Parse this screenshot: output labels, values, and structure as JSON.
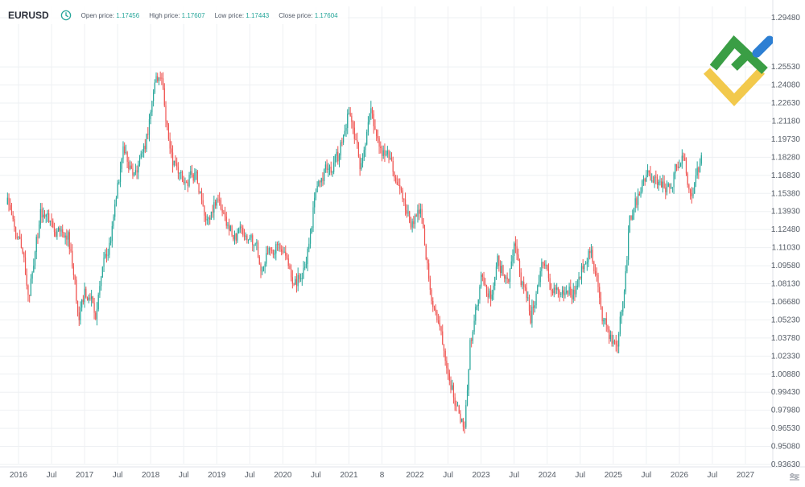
{
  "header": {
    "symbol": "EURUSD",
    "clock_icon": "clock-icon",
    "open_label": "Open price:",
    "open_value": "1.17456",
    "high_label": "High price:",
    "high_value": "1.17607",
    "low_label": "Low price:",
    "low_value": "1.17443",
    "close_label": "Close price:",
    "close_value": "1.17604"
  },
  "colors": {
    "up": "#26a69a",
    "down": "#ef5350",
    "grid": "#eef0f3",
    "axis_text": "#555c66",
    "logo_green": "#3a9e45",
    "logo_yellow": "#f2c94c",
    "logo_blue": "#2d7fd3"
  },
  "icons": {
    "logo": "logo-icon",
    "settings": "settings-icon"
  },
  "chart_data": {
    "type": "candlestick",
    "title": "",
    "xlabel": "",
    "ylabel": "",
    "ylim": [
      0.9363,
      1.2948
    ],
    "y_ticks": [
      "1.29480",
      "1.25530",
      "1.24080",
      "1.22630",
      "1.21180",
      "1.19730",
      "1.18280",
      "1.16830",
      "1.15380",
      "1.13930",
      "1.12480",
      "1.11030",
      "1.09580",
      "1.08130",
      "1.06680",
      "1.05230",
      "1.03780",
      "1.02330",
      "1.00880",
      "0.99430",
      "0.97980",
      "0.96530",
      "0.95080",
      "0.93630"
    ],
    "x_range": [
      "2015-11",
      "2027-06"
    ],
    "x_ticks": [
      {
        "label": "2016",
        "date": "2016-01"
      },
      {
        "label": "Jul",
        "date": "2016-07"
      },
      {
        "label": "2017",
        "date": "2017-01"
      },
      {
        "label": "Jul",
        "date": "2017-07"
      },
      {
        "label": "2018",
        "date": "2018-01"
      },
      {
        "label": "Jul",
        "date": "2018-07"
      },
      {
        "label": "2019",
        "date": "2019-01"
      },
      {
        "label": "Jul",
        "date": "2019-07"
      },
      {
        "label": "2020",
        "date": "2020-01"
      },
      {
        "label": "Jul",
        "date": "2020-07"
      },
      {
        "label": "2021",
        "date": "2021-01"
      },
      {
        "label": "8",
        "date": "2021-07"
      },
      {
        "label": "2022",
        "date": "2022-01"
      },
      {
        "label": "Jul",
        "date": "2022-07"
      },
      {
        "label": "2023",
        "date": "2023-01"
      },
      {
        "label": "Jul",
        "date": "2023-07"
      },
      {
        "label": "2024",
        "date": "2024-01"
      },
      {
        "label": "Jul",
        "date": "2024-07"
      },
      {
        "label": "2025",
        "date": "2025-01"
      },
      {
        "label": "Jul",
        "date": "2025-07"
      },
      {
        "label": "2026",
        "date": "2026-01"
      },
      {
        "label": "Jul",
        "date": "2026-07"
      },
      {
        "label": "2027",
        "date": "2027-01"
      }
    ],
    "grid": true,
    "series": [
      {
        "close_path": [
          {
            "date": "2015-11",
            "close": 1.145
          },
          {
            "date": "2016-02",
            "close": 1.097
          },
          {
            "date": "2016-03",
            "close": 1.075
          },
          {
            "date": "2016-05",
            "close": 1.135
          },
          {
            "date": "2016-06",
            "close": 1.142
          },
          {
            "date": "2016-08",
            "close": 1.125
          },
          {
            "date": "2016-10",
            "close": 1.12
          },
          {
            "date": "2016-11",
            "close": 1.088
          },
          {
            "date": "2016-12",
            "close": 1.05
          },
          {
            "date": "2017-01",
            "close": 1.075
          },
          {
            "date": "2017-03",
            "close": 1.06
          },
          {
            "date": "2017-04",
            "close": 1.09
          },
          {
            "date": "2017-06",
            "close": 1.125
          },
          {
            "date": "2017-08",
            "close": 1.185
          },
          {
            "date": "2017-10",
            "close": 1.165
          },
          {
            "date": "2017-12",
            "close": 1.19
          },
          {
            "date": "2018-02",
            "close": 1.245
          },
          {
            "date": "2018-03",
            "close": 1.235
          },
          {
            "date": "2018-05",
            "close": 1.175
          },
          {
            "date": "2018-07",
            "close": 1.165
          },
          {
            "date": "2018-09",
            "close": 1.17
          },
          {
            "date": "2018-11",
            "close": 1.135
          },
          {
            "date": "2019-01",
            "close": 1.145
          },
          {
            "date": "2019-03",
            "close": 1.125
          },
          {
            "date": "2019-05",
            "close": 1.118
          },
          {
            "date": "2019-07",
            "close": 1.12
          },
          {
            "date": "2019-09",
            "close": 1.098
          },
          {
            "date": "2019-12",
            "close": 1.112
          },
          {
            "date": "2020-02",
            "close": 1.09
          },
          {
            "date": "2020-03",
            "close": 1.078
          },
          {
            "date": "2020-05",
            "close": 1.095
          },
          {
            "date": "2020-07",
            "close": 1.16
          },
          {
            "date": "2020-09",
            "close": 1.175
          },
          {
            "date": "2020-11",
            "close": 1.18
          },
          {
            "date": "2021-01",
            "close": 1.222
          },
          {
            "date": "2021-03",
            "close": 1.176
          },
          {
            "date": "2021-05",
            "close": 1.22
          },
          {
            "date": "2021-06",
            "close": 1.19
          },
          {
            "date": "2021-08",
            "close": 1.18
          },
          {
            "date": "2021-10",
            "close": 1.158
          },
          {
            "date": "2021-12",
            "close": 1.13
          },
          {
            "date": "2022-02",
            "close": 1.135
          },
          {
            "date": "2022-03",
            "close": 1.097
          },
          {
            "date": "2022-05",
            "close": 1.055
          },
          {
            "date": "2022-07",
            "close": 1.02
          },
          {
            "date": "2022-09",
            "close": 0.975
          },
          {
            "date": "2022-10",
            "close": 0.97
          },
          {
            "date": "2022-11",
            "close": 1.035
          },
          {
            "date": "2023-01",
            "close": 1.08
          },
          {
            "date": "2023-03",
            "close": 1.07
          },
          {
            "date": "2023-04",
            "close": 1.095
          },
          {
            "date": "2023-06",
            "close": 1.09
          },
          {
            "date": "2023-07",
            "close": 1.12
          },
          {
            "date": "2023-08",
            "close": 1.088
          },
          {
            "date": "2023-10",
            "close": 1.055
          },
          {
            "date": "2023-12",
            "close": 1.098
          },
          {
            "date": "2024-02",
            "close": 1.075
          },
          {
            "date": "2024-04",
            "close": 1.072
          },
          {
            "date": "2024-06",
            "close": 1.078
          },
          {
            "date": "2024-08",
            "close": 1.105
          },
          {
            "date": "2024-09",
            "close": 1.115
          },
          {
            "date": "2024-11",
            "close": 1.055
          },
          {
            "date": "2025-01",
            "close": 1.03
          },
          {
            "date": "2025-02",
            "close": 1.04
          },
          {
            "date": "2025-03",
            "close": 1.082
          },
          {
            "date": "2025-04",
            "close": 1.135
          },
          {
            "date": "2025-06",
            "close": 1.155
          },
          {
            "date": "2025-07",
            "close": 1.17
          },
          {
            "date": "2025-08",
            "close": 1.163
          },
          {
            "date": "2025-10",
            "close": 1.16
          },
          {
            "date": "2025-11",
            "close": 1.158
          },
          {
            "date": "2026-01",
            "close": 1.185
          },
          {
            "date": "2026-02",
            "close": 1.18
          },
          {
            "date": "2026-03",
            "close": 1.155
          },
          {
            "date": "2026-05",
            "close": 1.176
          }
        ]
      }
    ]
  }
}
